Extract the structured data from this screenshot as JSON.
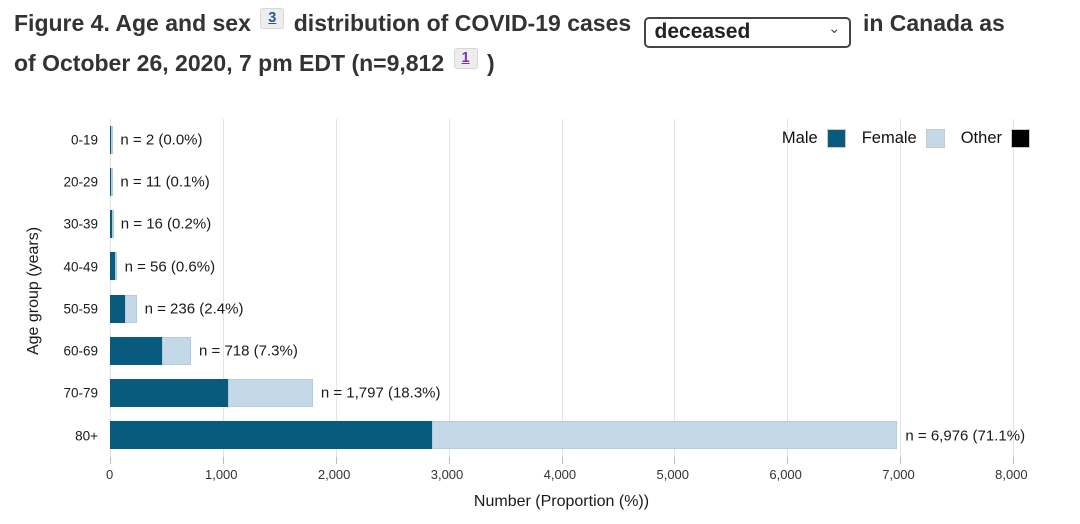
{
  "header": {
    "title_part1": "Figure 4. Age and sex",
    "footnote_ref_sex": "3",
    "title_part2": "distribution of COVID-19 cases",
    "title_part3": "in Canada as",
    "title_part4": "of October 26, 2020, 7 pm EDT (n=9,812",
    "title_part5": ")",
    "case_type_select": {
      "value": "deceased"
    }
  },
  "chart_data": {
    "type": "bar",
    "orientation": "horizontal",
    "stacked": true,
    "categories": [
      "0-19",
      "20-29",
      "30-39",
      "40-49",
      "50-59",
      "60-69",
      "70-79",
      "80+"
    ],
    "series": [
      {
        "name": "Male",
        "color": "#095b7d",
        "values": [
          1,
          9,
          14,
          48,
          130,
          460,
          1045,
          2850
        ]
      },
      {
        "name": "Female",
        "color": "#c3d9e8",
        "values": [
          1,
          2,
          2,
          8,
          106,
          258,
          752,
          4126
        ]
      },
      {
        "name": "Other",
        "color": "#000000",
        "values": [
          0,
          0,
          0,
          0,
          0,
          0,
          0,
          0
        ]
      }
    ],
    "totals": [
      2,
      11,
      16,
      56,
      236,
      718,
      1797,
      6976
    ],
    "bar_labels": [
      "n = 2 (0.0%)",
      "n = 11 (0.1%)",
      "n = 16 (0.2%)",
      "n = 56 (0.6%)",
      "n = 236 (2.4%)",
      "n = 718 (7.3%)",
      "n = 1,797 (18.3%)",
      "n = 6,976 (71.1%)"
    ],
    "xlabel": "Number (Proportion (%))",
    "ylabel": "Age group (years)",
    "xlim": [
      0,
      8000
    ],
    "xticks": {
      "values": [
        0,
        1000,
        2000,
        3000,
        4000,
        5000,
        6000,
        7000,
        8000
      ],
      "labels": [
        "0",
        "1,000",
        "2,000",
        "3,000",
        "4,000",
        "5,000",
        "6,000",
        "7,000",
        "8,000"
      ]
    },
    "grid": "vertical",
    "legend": {
      "position": "top-right",
      "items": [
        {
          "label": "Male",
          "color": "#095b7d"
        },
        {
          "label": "Female",
          "color": "#c3d9e8"
        },
        {
          "label": "Other",
          "color": "#000000"
        }
      ]
    }
  }
}
